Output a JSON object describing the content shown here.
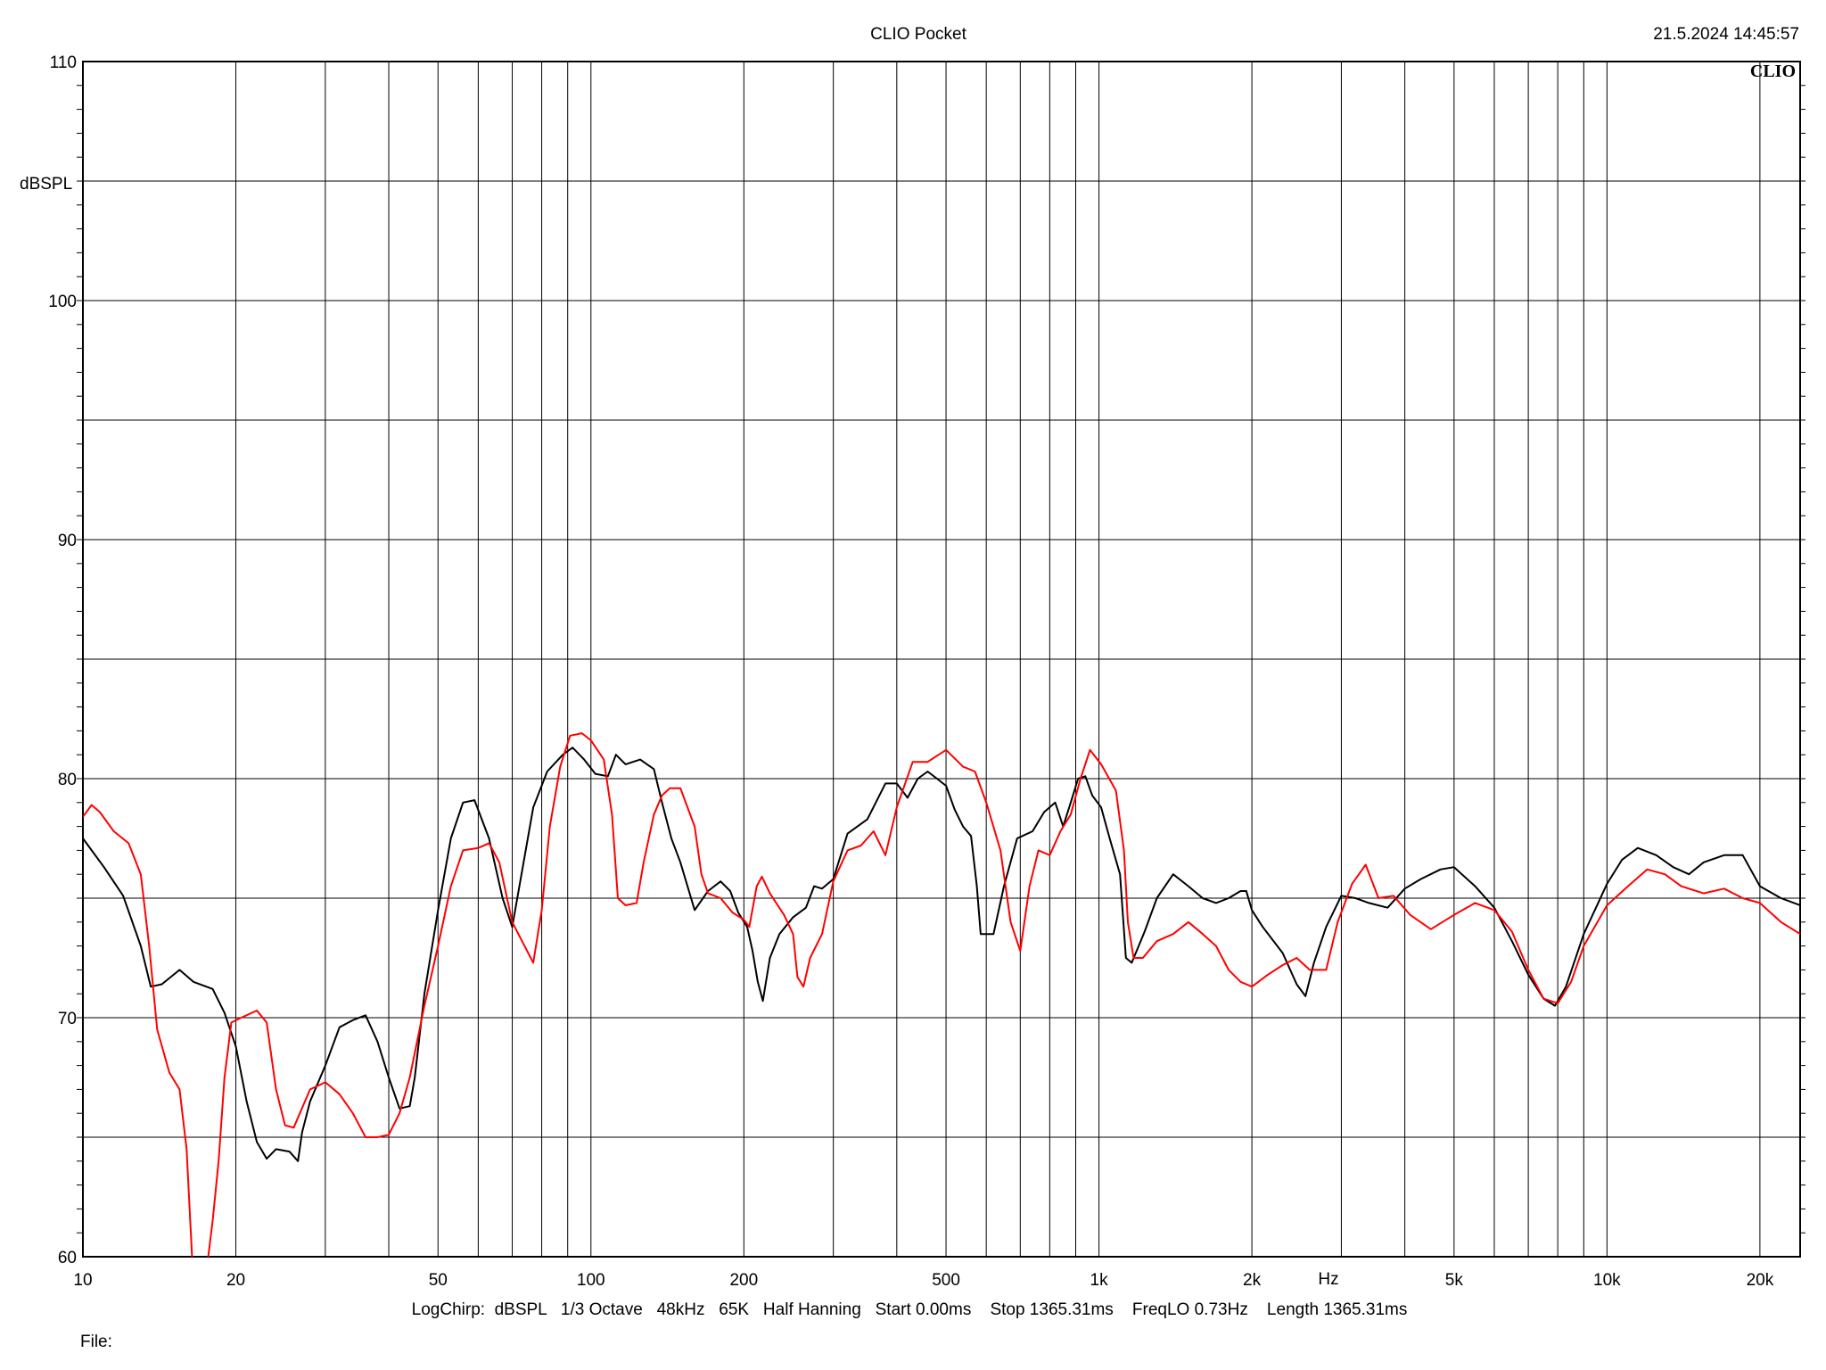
{
  "header": {
    "title": "CLIO Pocket",
    "timestamp": "21.5.2024 14:45:57",
    "logo": "CLIO"
  },
  "footer": {
    "settings": "LogChirp:  dBSPL   1/3 Octave   48kHz   65K   Half Hanning   Start 0.00ms    Stop 1365.31ms    FreqLO 0.73Hz    Length 1365.31ms",
    "file_label": "File:"
  },
  "chart_data": {
    "type": "line",
    "title": "CLIO Pocket",
    "xlabel": "Hz",
    "ylabel": "dBSPL",
    "x_scale": "log",
    "xlim": [
      10,
      24000
    ],
    "ylim": [
      60,
      110
    ],
    "grid": true,
    "y_ticks": [
      60,
      70,
      80,
      90,
      100,
      110
    ],
    "x_tick_labels": [
      {
        "value": 10,
        "label": "10"
      },
      {
        "value": 20,
        "label": "20"
      },
      {
        "value": 50,
        "label": "50"
      },
      {
        "value": 100,
        "label": "100"
      },
      {
        "value": 200,
        "label": "200"
      },
      {
        "value": 500,
        "label": "500"
      },
      {
        "value": 1000,
        "label": "1k"
      },
      {
        "value": 2000,
        "label": "2k"
      },
      {
        "value": 5000,
        "label": "5k"
      },
      {
        "value": 10000,
        "label": "10k"
      },
      {
        "value": 20000,
        "label": "20k"
      }
    ],
    "x_grid": [
      10,
      20,
      30,
      40,
      50,
      60,
      70,
      80,
      90,
      100,
      200,
      300,
      400,
      500,
      600,
      700,
      800,
      900,
      1000,
      2000,
      3000,
      4000,
      5000,
      6000,
      7000,
      8000,
      9000,
      10000,
      20000
    ],
    "y_grid": [
      60,
      65,
      70,
      75,
      80,
      85,
      90,
      95,
      100,
      105,
      110
    ],
    "series": [
      {
        "color": "#000000",
        "points": [
          [
            10,
            77.5
          ],
          [
            11,
            76.3
          ],
          [
            12,
            75.1
          ],
          [
            13,
            73
          ],
          [
            13.6,
            71.3
          ],
          [
            14.3,
            71.4
          ],
          [
            15.5,
            72
          ],
          [
            16.5,
            71.5
          ],
          [
            18,
            71.2
          ],
          [
            19,
            70.2
          ],
          [
            20,
            68.8
          ],
          [
            21,
            66.5
          ],
          [
            22,
            64.8
          ],
          [
            23,
            64.1
          ],
          [
            24,
            64.5
          ],
          [
            25.5,
            64.4
          ],
          [
            26.5,
            64
          ],
          [
            27,
            65.2
          ],
          [
            28,
            66.5
          ],
          [
            30,
            68
          ],
          [
            32,
            69.6
          ],
          [
            34,
            69.9
          ],
          [
            36,
            70.1
          ],
          [
            38,
            69
          ],
          [
            40,
            67.5
          ],
          [
            42,
            66.2
          ],
          [
            44,
            66.3
          ],
          [
            45,
            67.5
          ],
          [
            47,
            71
          ],
          [
            50,
            74.5
          ],
          [
            53,
            77.5
          ],
          [
            56,
            79
          ],
          [
            59,
            79.1
          ],
          [
            63,
            77.5
          ],
          [
            67,
            75
          ],
          [
            70,
            73.8
          ],
          [
            73,
            76
          ],
          [
            77,
            78.8
          ],
          [
            82,
            80.3
          ],
          [
            88,
            81
          ],
          [
            92,
            81.3
          ],
          [
            97,
            80.8
          ],
          [
            102,
            80.2
          ],
          [
            108,
            80.1
          ],
          [
            112,
            81
          ],
          [
            117,
            80.6
          ],
          [
            125,
            80.8
          ],
          [
            133,
            80.4
          ],
          [
            138,
            79
          ],
          [
            144,
            77.5
          ],
          [
            150,
            76.5
          ],
          [
            160,
            74.5
          ],
          [
            170,
            75.3
          ],
          [
            180,
            75.7
          ],
          [
            188,
            75.3
          ],
          [
            195,
            74.4
          ],
          [
            203,
            73.8
          ],
          [
            208,
            72.8
          ],
          [
            213,
            71.5
          ],
          [
            218,
            70.7
          ],
          [
            225,
            72.5
          ],
          [
            235,
            73.5
          ],
          [
            250,
            74.2
          ],
          [
            265,
            74.6
          ],
          [
            275,
            75.5
          ],
          [
            285,
            75.4
          ],
          [
            300,
            75.8
          ],
          [
            320,
            77.7
          ],
          [
            350,
            78.3
          ],
          [
            380,
            79.8
          ],
          [
            400,
            79.8
          ],
          [
            420,
            79.2
          ],
          [
            440,
            80
          ],
          [
            460,
            80.3
          ],
          [
            480,
            80
          ],
          [
            500,
            79.7
          ],
          [
            520,
            78.7
          ],
          [
            540,
            78
          ],
          [
            560,
            77.6
          ],
          [
            575,
            75.5
          ],
          [
            585,
            73.5
          ],
          [
            600,
            73.5
          ],
          [
            620,
            73.5
          ],
          [
            650,
            75.5
          ],
          [
            690,
            77.5
          ],
          [
            740,
            77.8
          ],
          [
            780,
            78.6
          ],
          [
            820,
            79
          ],
          [
            850,
            78
          ],
          [
            880,
            79
          ],
          [
            910,
            80
          ],
          [
            940,
            80.1
          ],
          [
            970,
            79.3
          ],
          [
            1010,
            78.8
          ],
          [
            1050,
            77.5
          ],
          [
            1100,
            76
          ],
          [
            1130,
            72.5
          ],
          [
            1160,
            72.3
          ],
          [
            1230,
            73.6
          ],
          [
            1300,
            75
          ],
          [
            1400,
            76
          ],
          [
            1500,
            75.5
          ],
          [
            1600,
            75
          ],
          [
            1700,
            74.8
          ],
          [
            1800,
            75
          ],
          [
            1900,
            75.3
          ],
          [
            1950,
            75.3
          ],
          [
            2000,
            74.5
          ],
          [
            2100,
            73.8
          ],
          [
            2300,
            72.7
          ],
          [
            2450,
            71.4
          ],
          [
            2550,
            70.9
          ],
          [
            2650,
            72.3
          ],
          [
            2800,
            73.8
          ],
          [
            3000,
            75.1
          ],
          [
            3200,
            75
          ],
          [
            3400,
            74.8
          ],
          [
            3700,
            74.6
          ],
          [
            4000,
            75.4
          ],
          [
            4300,
            75.8
          ],
          [
            4700,
            76.2
          ],
          [
            5000,
            76.3
          ],
          [
            5500,
            75.5
          ],
          [
            6000,
            74.6
          ],
          [
            6500,
            73.2
          ],
          [
            7000,
            71.8
          ],
          [
            7500,
            70.8
          ],
          [
            7900,
            70.5
          ],
          [
            8300,
            71.3
          ],
          [
            9000,
            73.5
          ],
          [
            10000,
            75.6
          ],
          [
            10700,
            76.6
          ],
          [
            11500,
            77.1
          ],
          [
            12500,
            76.8
          ],
          [
            13500,
            76.3
          ],
          [
            14500,
            76
          ],
          [
            15500,
            76.5
          ],
          [
            17000,
            76.8
          ],
          [
            18500,
            76.8
          ],
          [
            20000,
            75.5
          ],
          [
            22000,
            75
          ],
          [
            24000,
            74.7
          ]
        ]
      },
      {
        "color": "#ff0000",
        "points": [
          [
            10,
            78.4
          ],
          [
            10.4,
            78.9
          ],
          [
            10.8,
            78.6
          ],
          [
            11.5,
            77.8
          ],
          [
            12.3,
            77.3
          ],
          [
            13,
            76
          ],
          [
            13.5,
            73
          ],
          [
            14,
            69.5
          ],
          [
            14.8,
            67.7
          ],
          [
            15.5,
            67
          ],
          [
            16,
            64.5
          ],
          [
            16.4,
            60
          ],
          [
            17.3,
            58.5
          ],
          [
            18,
            61.5
          ],
          [
            18.5,
            64
          ],
          [
            19,
            67.5
          ],
          [
            19.6,
            69.8
          ],
          [
            20.5,
            70
          ],
          [
            22,
            70.3
          ],
          [
            23,
            69.8
          ],
          [
            24,
            67
          ],
          [
            25,
            65.5
          ],
          [
            26,
            65.4
          ],
          [
            28,
            67
          ],
          [
            30,
            67.3
          ],
          [
            32,
            66.8
          ],
          [
            34,
            66
          ],
          [
            36,
            65
          ],
          [
            38,
            65
          ],
          [
            40,
            65.1
          ],
          [
            42,
            66
          ],
          [
            44,
            67.5
          ],
          [
            47,
            70.5
          ],
          [
            50,
            73
          ],
          [
            53,
            75.5
          ],
          [
            56,
            77
          ],
          [
            60,
            77.1
          ],
          [
            63,
            77.3
          ],
          [
            66,
            76.5
          ],
          [
            70,
            74
          ],
          [
            74,
            73
          ],
          [
            77,
            72.3
          ],
          [
            80,
            74.5
          ],
          [
            83,
            78
          ],
          [
            87,
            80.5
          ],
          [
            91,
            81.8
          ],
          [
            96,
            81.9
          ],
          [
            100,
            81.6
          ],
          [
            106,
            80.8
          ],
          [
            110,
            78.5
          ],
          [
            113,
            75
          ],
          [
            117,
            74.7
          ],
          [
            123,
            74.8
          ],
          [
            127,
            76.5
          ],
          [
            133,
            78.5
          ],
          [
            138,
            79.3
          ],
          [
            143,
            79.6
          ],
          [
            150,
            79.6
          ],
          [
            160,
            78
          ],
          [
            165,
            76
          ],
          [
            170,
            75.2
          ],
          [
            180,
            75
          ],
          [
            190,
            74.4
          ],
          [
            200,
            74.1
          ],
          [
            205,
            73.8
          ],
          [
            212,
            75.5
          ],
          [
            217,
            75.9
          ],
          [
            225,
            75.2
          ],
          [
            240,
            74.3
          ],
          [
            250,
            73.5
          ],
          [
            255,
            71.7
          ],
          [
            262,
            71.3
          ],
          [
            270,
            72.5
          ],
          [
            285,
            73.5
          ],
          [
            300,
            75.7
          ],
          [
            320,
            77
          ],
          [
            340,
            77.2
          ],
          [
            360,
            77.8
          ],
          [
            380,
            76.8
          ],
          [
            400,
            78.8
          ],
          [
            430,
            80.7
          ],
          [
            460,
            80.7
          ],
          [
            500,
            81.2
          ],
          [
            540,
            80.5
          ],
          [
            570,
            80.3
          ],
          [
            600,
            79
          ],
          [
            640,
            77
          ],
          [
            670,
            74
          ],
          [
            700,
            72.8
          ],
          [
            730,
            75.5
          ],
          [
            760,
            77
          ],
          [
            800,
            76.8
          ],
          [
            840,
            77.8
          ],
          [
            880,
            78.5
          ],
          [
            920,
            80
          ],
          [
            960,
            81.2
          ],
          [
            1010,
            80.6
          ],
          [
            1080,
            79.5
          ],
          [
            1120,
            77
          ],
          [
            1140,
            74
          ],
          [
            1170,
            72.5
          ],
          [
            1220,
            72.5
          ],
          [
            1300,
            73.2
          ],
          [
            1400,
            73.5
          ],
          [
            1500,
            74
          ],
          [
            1600,
            73.5
          ],
          [
            1700,
            73
          ],
          [
            1800,
            72
          ],
          [
            1900,
            71.5
          ],
          [
            2000,
            71.3
          ],
          [
            2150,
            71.8
          ],
          [
            2300,
            72.2
          ],
          [
            2450,
            72.5
          ],
          [
            2600,
            72
          ],
          [
            2800,
            72
          ],
          [
            2950,
            74
          ],
          [
            3150,
            75.6
          ],
          [
            3350,
            76.4
          ],
          [
            3550,
            75
          ],
          [
            3800,
            75.1
          ],
          [
            4100,
            74.3
          ],
          [
            4500,
            73.7
          ],
          [
            5000,
            74.3
          ],
          [
            5500,
            74.8
          ],
          [
            6000,
            74.5
          ],
          [
            6500,
            73.6
          ],
          [
            7000,
            72
          ],
          [
            7500,
            70.8
          ],
          [
            8000,
            70.6
          ],
          [
            8500,
            71.5
          ],
          [
            9000,
            73
          ],
          [
            10000,
            74.7
          ],
          [
            11000,
            75.5
          ],
          [
            12000,
            76.2
          ],
          [
            13000,
            76
          ],
          [
            14000,
            75.5
          ],
          [
            15500,
            75.2
          ],
          [
            17000,
            75.4
          ],
          [
            18500,
            75
          ],
          [
            20000,
            74.8
          ],
          [
            22000,
            74
          ],
          [
            24000,
            73.5
          ]
        ]
      }
    ]
  }
}
